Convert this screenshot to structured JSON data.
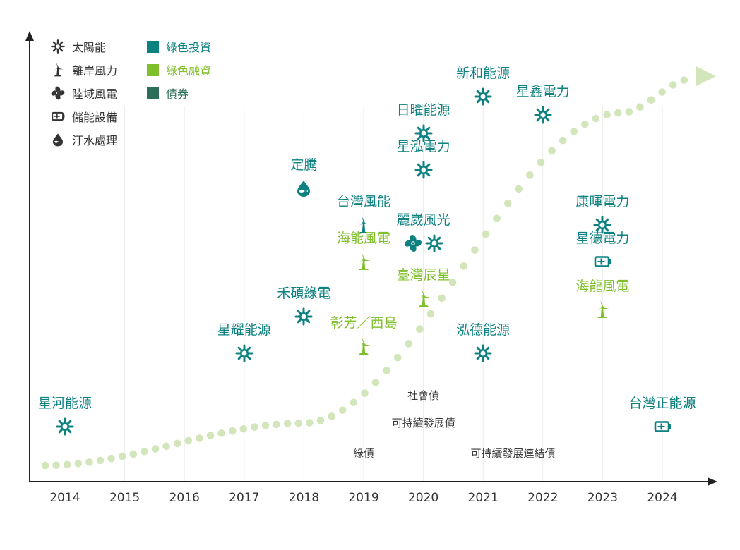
{
  "chart_data": {
    "type": "scatter",
    "x_axis": {
      "categories": [
        "2014",
        "2015",
        "2016",
        "2017",
        "2018",
        "2019",
        "2020",
        "2021",
        "2022",
        "2023",
        "2024"
      ]
    },
    "series": [
      {
        "name": "綠色投資",
        "color": "#0d8080"
      },
      {
        "name": "綠色融資",
        "color": "#7fbf2b"
      },
      {
        "name": "債券",
        "color": "#2c6e5a"
      }
    ],
    "icon_types": [
      {
        "key": "solar",
        "label": "太陽能",
        "icon": "sun-icon"
      },
      {
        "key": "offshore",
        "label": "離岸風力",
        "icon": "wind-turbine-icon"
      },
      {
        "key": "onshore",
        "label": "陸域風電",
        "icon": "fan-icon"
      },
      {
        "key": "storage",
        "label": "儲能設備",
        "icon": "battery-icon"
      },
      {
        "key": "water",
        "label": "汙水處理",
        "icon": "water-drop-icon"
      }
    ],
    "points": [
      {
        "year": 2014,
        "level": 1,
        "label": "星河能源",
        "series": "綠色投資",
        "icons": [
          "solar"
        ]
      },
      {
        "year": 2017,
        "level": 3,
        "label": "星耀能源",
        "series": "綠色投資",
        "icons": [
          "solar"
        ]
      },
      {
        "year": 2018,
        "level": 4,
        "label": "禾碩綠電",
        "series": "綠色投資",
        "icons": [
          "solar"
        ]
      },
      {
        "year": 2018,
        "level": 7.5,
        "label": "定騰",
        "series": "綠色投資",
        "icons": [
          "water"
        ]
      },
      {
        "year": 2019,
        "level": 6.5,
        "label": "台灣風能",
        "series": "綠色投資",
        "icons": [
          "offshore"
        ]
      },
      {
        "year": 2019,
        "level": 5.5,
        "label": "海能風電",
        "series": "綠色融資",
        "icons": [
          "offshore"
        ]
      },
      {
        "year": 2019,
        "level": 3.2,
        "label": "彰芳／西島",
        "series": "綠色融資",
        "icons": [
          "offshore"
        ]
      },
      {
        "year": 2020,
        "level": 9,
        "label": "日曜能源",
        "series": "綠色投資",
        "icons": [
          "solar"
        ]
      },
      {
        "year": 2020,
        "level": 8,
        "label": "星泓電力",
        "series": "綠色投資",
        "icons": [
          "solar"
        ]
      },
      {
        "year": 2020,
        "level": 6,
        "label": "麗崴風光",
        "series": "綠色投資",
        "icons": [
          "onshore",
          "solar"
        ]
      },
      {
        "year": 2020,
        "level": 4.5,
        "label": "臺灣辰星",
        "series": "綠色融資",
        "icons": [
          "offshore"
        ]
      },
      {
        "year": 2021,
        "level": 10,
        "label": "新和能源",
        "series": "綠色投資",
        "icons": [
          "solar"
        ]
      },
      {
        "year": 2021,
        "level": 3,
        "label": "泓德能源",
        "series": "綠色投資",
        "icons": [
          "solar"
        ]
      },
      {
        "year": 2022,
        "level": 9.5,
        "label": "星鑫電力",
        "series": "綠色投資",
        "icons": [
          "solar"
        ]
      },
      {
        "year": 2023,
        "level": 6.5,
        "label": "康暉電力",
        "series": "綠色投資",
        "icons": [
          "solar"
        ]
      },
      {
        "year": 2023,
        "level": 5.5,
        "label": "星德電力",
        "series": "綠色投資",
        "icons": [
          "storage"
        ]
      },
      {
        "year": 2023,
        "level": 4.2,
        "label": "海龍風電",
        "series": "綠色融資",
        "icons": [
          "offshore"
        ]
      },
      {
        "year": 2024,
        "level": 1,
        "label": "台灣正能源",
        "series": "綠色投資",
        "icons": [
          "storage"
        ]
      }
    ],
    "bonds": [
      {
        "year": 2019,
        "label": "綠債"
      },
      {
        "year": 2020,
        "label": "社會債"
      },
      {
        "year": 2020,
        "label": "可持續發展債"
      },
      {
        "year": 2021.5,
        "label": "可持續發展連結債"
      }
    ],
    "trend": {
      "style": "dotted-s-curve",
      "color": "#d3e6bb",
      "arrow": true
    },
    "grid": true,
    "legend_position": "top-left"
  }
}
